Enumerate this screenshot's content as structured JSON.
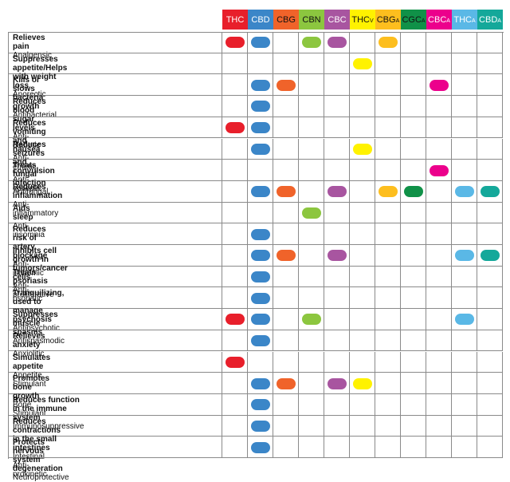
{
  "columns": [
    {
      "key": "THC",
      "base": "THC",
      "sub": "",
      "bg": "#e81f2b",
      "fg": "#ffffff"
    },
    {
      "key": "CBD",
      "base": "CBD",
      "sub": "",
      "bg": "#3b86c8",
      "fg": "#ffffff"
    },
    {
      "key": "CBG",
      "base": "CBG",
      "sub": "",
      "bg": "#f0632a",
      "fg": "#111111"
    },
    {
      "key": "CBN",
      "base": "CBN",
      "sub": "",
      "bg": "#8cc63f",
      "fg": "#111111"
    },
    {
      "key": "CBC",
      "base": "CBC",
      "sub": "",
      "bg": "#a855a0",
      "fg": "#ffffff"
    },
    {
      "key": "THCV",
      "base": "THC",
      "sub": "V",
      "bg": "#fff200",
      "fg": "#111111"
    },
    {
      "key": "CBGA",
      "base": "CBG",
      "sub": "A",
      "bg": "#fdbe1e",
      "fg": "#111111"
    },
    {
      "key": "CGCA",
      "base": "CGC",
      "sub": "A",
      "bg": "#109148",
      "fg": "#111111"
    },
    {
      "key": "CBCA",
      "base": "CBC",
      "sub": "A",
      "bg": "#ec008c",
      "fg": "#ffffff"
    },
    {
      "key": "THCA",
      "base": "THC",
      "sub": "A",
      "bg": "#5ab8e6",
      "fg": "#ffffff"
    },
    {
      "key": "CBDA",
      "base": "CBD",
      "sub": "A",
      "bg": "#14a89a",
      "fg": "#ffffff"
    }
  ],
  "rows": [
    {
      "title": "Relieves pain",
      "subtitle": "Analgensic",
      "marks": [
        "THC",
        "CBD",
        "CBN",
        "CBC",
        "CBGA"
      ]
    },
    {
      "title": "Suppresses appetite/Helps with weight loss",
      "subtitle": "Anorectic",
      "marks": [
        "THCV"
      ]
    },
    {
      "title": "Kills or slows bacteria growth",
      "subtitle": "Antibacterial",
      "marks": [
        "CBD",
        "CBG",
        "CBCA"
      ]
    },
    {
      "title": "Reduces blood sugar levels",
      "subtitle": "Anti-diabetic",
      "marks": [
        "CBD"
      ]
    },
    {
      "title": "Reduces vomiting and nausea",
      "subtitle": "Anti-emetic",
      "marks": [
        "THC",
        "CBD"
      ]
    },
    {
      "title": "Reduces seizures and convulsion",
      "subtitle": "Anti-epileptic",
      "marks": [
        "CBD",
        "THCV"
      ]
    },
    {
      "title": "Treats fungal infection",
      "subtitle": "Antifungal",
      "marks": [
        "CBCA"
      ]
    },
    {
      "title": "Reduces inflammation",
      "subtitle": "Anti-inflammatory",
      "marks": [
        "CBD",
        "CBG",
        "CBC",
        "CBGA",
        "CGCA",
        "THCA",
        "CBDA"
      ]
    },
    {
      "title": "Aids sleep",
      "subtitle": "Anti-insomnia",
      "marks": [
        "CBN"
      ]
    },
    {
      "title": "Reduces risk of artery blockage",
      "subtitle": "Anti-ischemic",
      "marks": [
        "CBD"
      ]
    },
    {
      "title": "Inhibits cell growth in tumors/cancer cells",
      "subtitle": "Anti-proliferative",
      "marks": [
        "CBD",
        "CBG",
        "CBC",
        "THCA",
        "CBDA"
      ]
    },
    {
      "title": "Treats psoriasis",
      "subtitle": "Anti-psoriatic",
      "marks": [
        "CBD"
      ]
    },
    {
      "title": "Tranquilizing, used to manage psychosis",
      "subtitle": "Antipsychotic",
      "marks": [
        "CBD"
      ]
    },
    {
      "title": "Suppresses muscle spasms",
      "subtitle": "Antispasmodic",
      "marks": [
        "THC",
        "CBD",
        "CBN",
        "THCA"
      ]
    },
    {
      "title": "Relieves anxiety",
      "subtitle": "Anxiolitic",
      "marks": [
        "CBD"
      ]
    },
    {
      "title": "Simulates appetite",
      "subtitle": "Appetite Stimulant",
      "marks": [
        "THC"
      ]
    },
    {
      "title": "Promotes bone growth",
      "subtitle": "Bone Stimulant",
      "marks": [
        "CBD",
        "CBG",
        "CBC",
        "THCV"
      ]
    },
    {
      "title": "Reduces function in the immune system",
      "subtitle": "Immunosuppressive",
      "marks": [
        "CBD"
      ]
    },
    {
      "title": "Reduces contractions in the small intestines",
      "subtitle": "Intestinal Anti-prokinetic",
      "marks": [
        "CBD"
      ]
    },
    {
      "title": "Protects nervous system degeneration",
      "subtitle": "Neuroprotective",
      "marks": [
        "CBD"
      ]
    }
  ]
}
